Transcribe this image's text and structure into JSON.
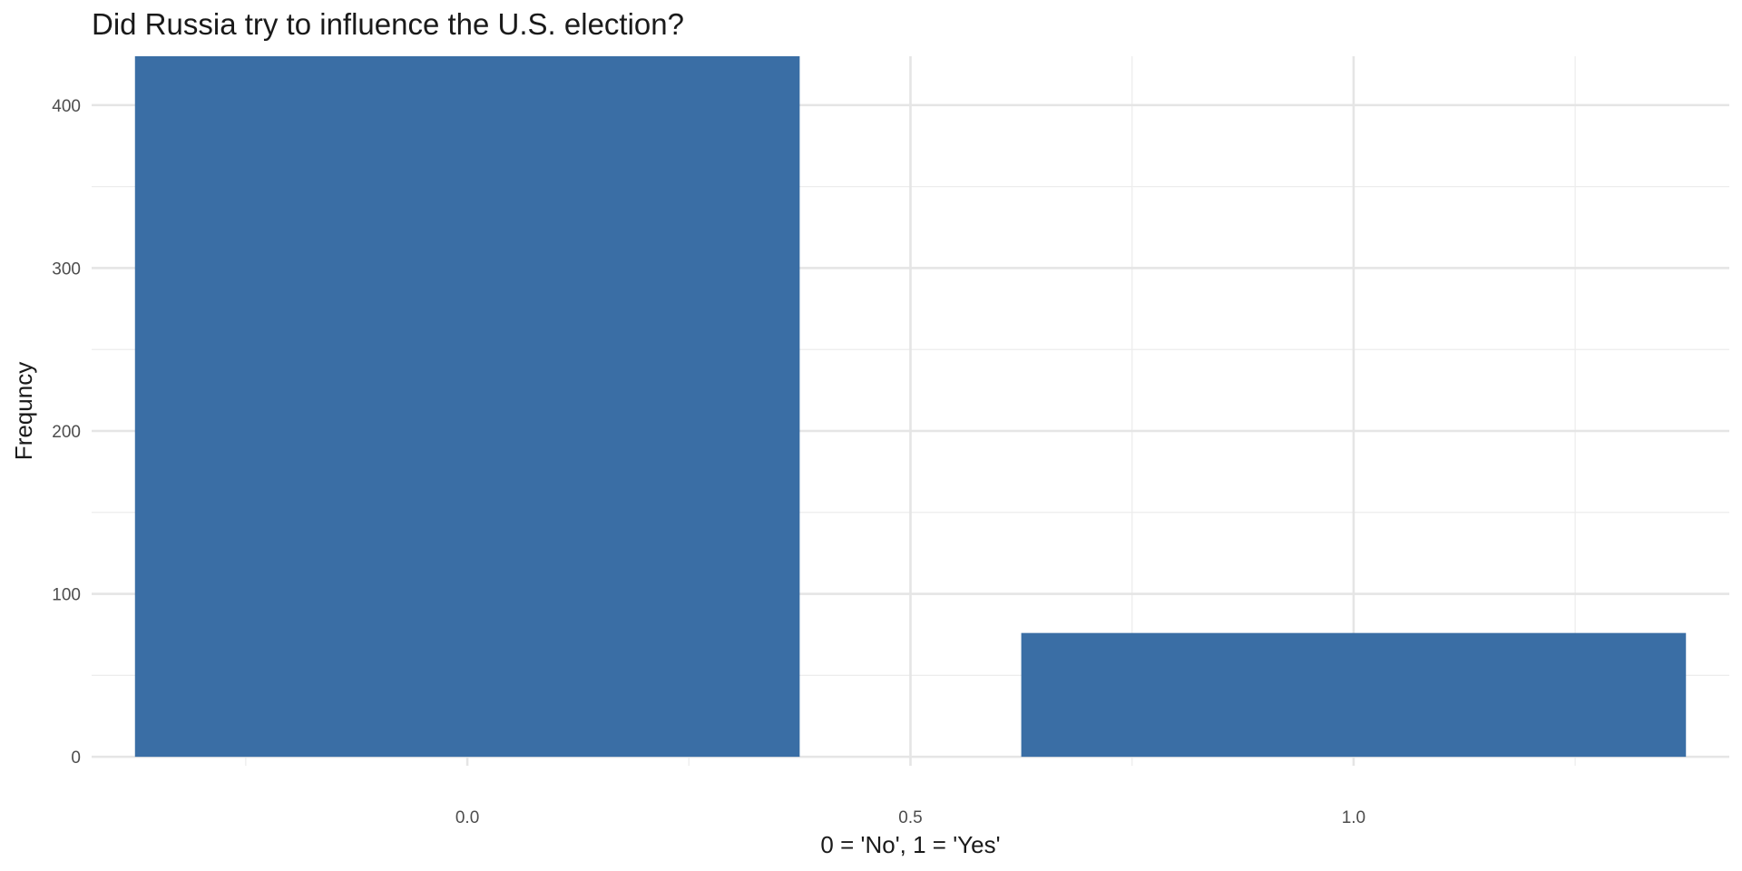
{
  "chart_data": {
    "type": "bar",
    "title": "Did Russia try to influence the U.S. election?",
    "xlabel": "0 = 'No', 1 = 'Yes'",
    "ylabel": "Frequncy",
    "x": [
      0,
      1
    ],
    "values": [
      430,
      76
    ],
    "bar_width": 0.75,
    "xlim": [
      -0.4239,
      1.4239
    ],
    "ylim": [
      -5.5,
      430
    ],
    "xticks": [
      0.0,
      0.5,
      1.0
    ],
    "xtick_labels": [
      "0.0",
      "0.5",
      "1.0"
    ],
    "yticks": [
      0,
      100,
      200,
      300,
      400
    ],
    "ytick_labels": [
      "0",
      "100",
      "200",
      "300",
      "400"
    ],
    "grid": true,
    "legend": "none",
    "bar_color": "#3A6EA5"
  }
}
